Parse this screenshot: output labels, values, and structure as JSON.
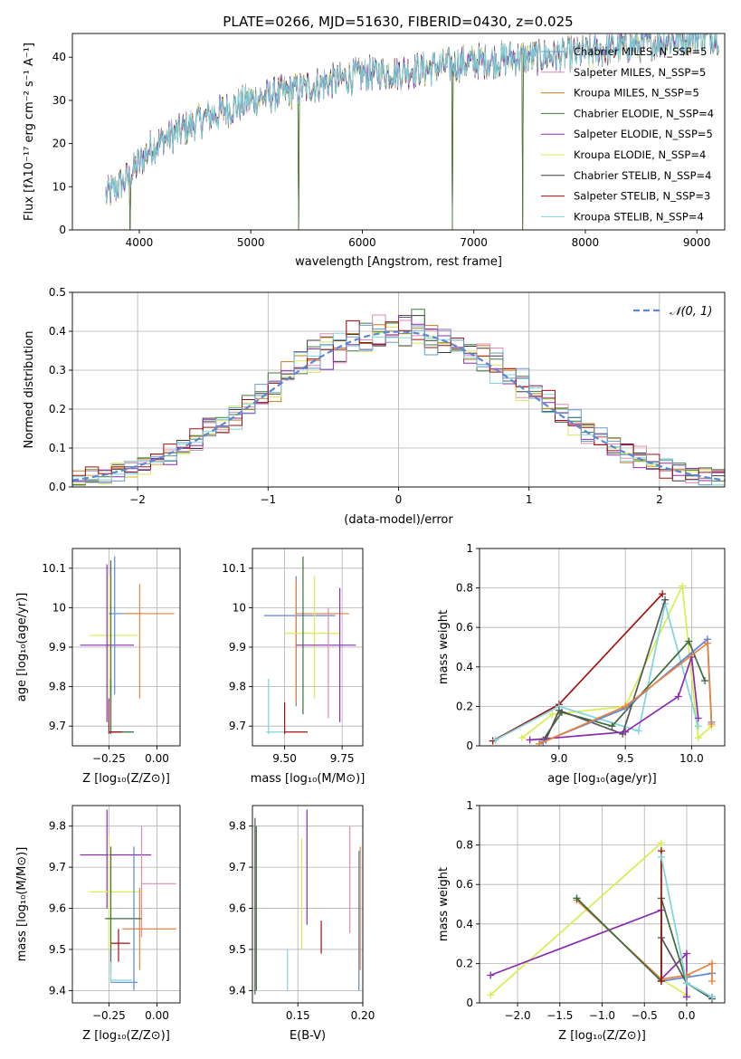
{
  "colors": {
    "chabrier_miles": "#6b9bc4",
    "salpeter_miles": "#e08ab4",
    "kroupa_miles": "#c07d1c",
    "chabrier_elodie": "#3d7a3d",
    "salpeter_elodie": "#8a2cb0",
    "kroupa_elodie": "#d7e85a",
    "chabrier_stelib": "#3a3a3a",
    "salpeter_stelib": "#a01010",
    "kroupa_stelib": "#7fd5dc",
    "normal": "#5b87d6",
    "orange": "#e8823a",
    "purple": "#8a2cb0",
    "dkgreen": "#3d6b3d",
    "grey": "#555555",
    "yellow": "#d7ee4e",
    "teal": "#7fd5dc",
    "red": "#a01010"
  },
  "chart_data": [
    {
      "id": "spectrum",
      "type": "line",
      "title": "PLATE=0266, MJD=51630, FIBERID=0430, z=0.025",
      "xlabel": "wavelength [Angstrom, rest frame]",
      "ylabel": "Flux [fλ10⁻¹⁷ erg cm⁻² s⁻¹ A⁻¹]",
      "xlim": [
        3400,
        9250
      ],
      "ylim": [
        0,
        45.5
      ],
      "xticks": [
        4000,
        5000,
        6000,
        7000,
        8000,
        9000
      ],
      "yticks": [
        0,
        10,
        20,
        30,
        40
      ],
      "grid": false,
      "legend_position": "top-right",
      "series": [
        {
          "name": "Chabrier MILES, N_SSP=5"
        },
        {
          "name": "Salpeter MILES, N_SSP=5"
        },
        {
          "name": "Kroupa MILES, N_SSP=5"
        },
        {
          "name": "Chabrier ELODIE, N_SSP=4"
        },
        {
          "name": "Salpeter ELODIE, N_SSP=5"
        },
        {
          "name": "Kroupa ELODIE, N_SSP=4"
        },
        {
          "name": "Chabrier STELIB, N_SSP=4"
        },
        {
          "name": "Salpeter STELIB, N_SSP=3"
        },
        {
          "name": "Kroupa STELIB, N_SSP=4"
        }
      ],
      "trend": {
        "x": [
          3700,
          3900,
          4100,
          4300,
          4600,
          5000,
          5500,
          6000,
          6500,
          7000,
          7500,
          8000,
          8500,
          9000
        ],
        "y": [
          8,
          12,
          19,
          22,
          26,
          30,
          33,
          36,
          37,
          39,
          40,
          41,
          43,
          45
        ]
      },
      "dropouts": [
        3920,
        5430,
        6810,
        7440
      ]
    },
    {
      "id": "residuals",
      "type": "line",
      "xlabel": "(data-model)/error",
      "ylabel": "Normed distribution",
      "xlim": [
        -2.5,
        2.5
      ],
      "ylim": [
        0,
        0.5
      ],
      "xticks": [
        -2,
        -1,
        0,
        1,
        2
      ],
      "xtick_labels": [
        "−2",
        "−1",
        "0",
        "1",
        "2"
      ],
      "yticks": [
        0.0,
        0.1,
        0.2,
        0.3,
        0.4,
        0.5
      ],
      "ytick_labels": [
        "0.0",
        "0.1",
        "0.2",
        "0.3",
        "0.4",
        "0.5"
      ],
      "grid": true,
      "legend": "𝒩(0, 1)",
      "legend_position": "top-right",
      "gaussian": {
        "mu": 0,
        "sigma": 1
      }
    },
    {
      "id": "age_vs_Z",
      "type": "scatter",
      "xlabel": "Z [log₁₀(Z/Z⊙)]",
      "ylabel": "age  [log₁₀(age/yr)]",
      "xlim": [
        -0.44,
        0.12
      ],
      "ylim": [
        9.65,
        10.15
      ],
      "xticks": [
        -0.25,
        0.0
      ],
      "xtick_labels": [
        "−0.25",
        "0.00"
      ],
      "yticks": [
        9.7,
        9.8,
        9.9,
        10.0,
        10.1
      ],
      "grid": true,
      "points": [
        {
          "x": -0.25,
          "y": 9.93,
          "xl": -0.35,
          "xr": -0.1,
          "yl": 9.77,
          "yh": 10.08,
          "color": "yellow"
        },
        {
          "x": -0.26,
          "y": 9.905,
          "xl": -0.4,
          "xr": -0.12,
          "yl": 9.71,
          "yh": 10.11,
          "color": "purple"
        },
        {
          "x": -0.22,
          "y": 9.985,
          "xl": -0.25,
          "xr": -0.08,
          "yl": 9.78,
          "yh": 10.13,
          "color": "normal"
        },
        {
          "x": -0.09,
          "y": 9.985,
          "xl": -0.18,
          "xr": 0.09,
          "yl": 9.77,
          "yh": 10.06,
          "color": "orange"
        },
        {
          "x": -0.24,
          "y": 9.685,
          "xl": -0.24,
          "xr": -0.13,
          "yl": 9.68,
          "yh": 9.82,
          "color": "teal"
        },
        {
          "x": -0.24,
          "y": 9.685,
          "xl": -0.24,
          "xr": -0.12,
          "yl": 9.68,
          "yh": 9.82,
          "color": "dkgreen"
        },
        {
          "x": -0.25,
          "y": 9.685,
          "xl": -0.25,
          "xr": -0.18,
          "yl": 9.68,
          "yh": 9.77,
          "color": "red"
        },
        {
          "x": -0.24,
          "y": 9.98,
          "xl": -0.24,
          "xr": -0.24,
          "yl": 9.76,
          "yh": 10.12,
          "color": "dkgreen"
        }
      ]
    },
    {
      "id": "age_vs_mass",
      "type": "scatter",
      "xlabel": "mass [log₁₀(M/M⊙)]",
      "xlim": [
        9.36,
        9.84
      ],
      "ylim": [
        9.65,
        10.15
      ],
      "xticks": [
        9.5,
        9.75
      ],
      "xtick_labels": [
        "9.50",
        "9.75"
      ],
      "yticks": [
        9.7,
        9.8,
        9.9,
        10.0,
        10.1
      ],
      "grid": true,
      "points": [
        {
          "x": 9.55,
          "y": 9.98,
          "xl": 9.41,
          "xr": 9.72,
          "yl": 9.75,
          "yh": 10.08,
          "color": "normal"
        },
        {
          "x": 9.55,
          "y": 9.985,
          "xl": 9.55,
          "xr": 9.78,
          "yl": 9.76,
          "yh": 10.07,
          "color": "orange"
        },
        {
          "x": 9.63,
          "y": 9.935,
          "xl": 9.5,
          "xr": 9.74,
          "yl": 9.77,
          "yh": 10.08,
          "color": "yellow"
        },
        {
          "x": 9.74,
          "y": 9.905,
          "xl": 9.55,
          "xr": 9.81,
          "yl": 9.71,
          "yh": 10.05,
          "color": "purple"
        },
        {
          "x": 9.43,
          "y": 9.685,
          "xl": 9.42,
          "xr": 9.5,
          "yl": 9.68,
          "yh": 9.82,
          "color": "teal"
        },
        {
          "x": 9.5,
          "y": 9.685,
          "xl": 9.5,
          "xr": 9.6,
          "yl": 9.68,
          "yh": 9.76,
          "color": "red"
        },
        {
          "x": 9.58,
          "y": 9.935,
          "xl": 9.58,
          "xr": 9.58,
          "yl": 9.73,
          "yh": 10.13,
          "color": "dkgreen"
        },
        {
          "x": 9.69,
          "y": 9.92,
          "xl": 9.69,
          "xr": 9.69,
          "yl": 9.72,
          "yh": 10.0,
          "color": "salpeter_miles"
        }
      ]
    },
    {
      "id": "weight_vs_age",
      "type": "line",
      "xlabel": "age  [log₁₀(age/yr)]",
      "ylabel": "mass weight",
      "xlim": [
        8.4,
        10.25
      ],
      "ylim": [
        0.0,
        1.0
      ],
      "xticks": [
        9.0,
        9.5,
        10.0
      ],
      "xtick_labels": [
        "9.0",
        "9.5",
        "10.0"
      ],
      "yticks": [
        0.0,
        0.2,
        0.4,
        0.6,
        0.8,
        1.0
      ],
      "grid": true,
      "series": [
        {
          "color": "red",
          "x": [
            8.5,
            9.0,
            9.78
          ],
          "y": [
            0.025,
            0.21,
            0.77
          ]
        },
        {
          "color": "yellow",
          "x": [
            8.72,
            8.95,
            9.5,
            9.93,
            10.05,
            10.15
          ],
          "y": [
            0.04,
            0.16,
            0.2,
            0.81,
            0.04,
            0.1
          ]
        },
        {
          "color": "teal",
          "x": [
            8.52,
            9.0,
            9.6,
            9.8,
            10.05
          ],
          "y": [
            0.03,
            0.2,
            0.075,
            0.72,
            0.1
          ]
        },
        {
          "color": "dkgreen",
          "x": [
            8.88,
            9.02,
            9.4,
            9.98,
            10.1
          ],
          "y": [
            0.03,
            0.17,
            0.1,
            0.53,
            0.33
          ]
        },
        {
          "color": "grey",
          "x": [
            8.9,
            9.0,
            9.48,
            9.8
          ],
          "y": [
            0.03,
            0.18,
            0.06,
            0.74
          ]
        },
        {
          "color": "purple",
          "x": [
            8.78,
            9.5,
            9.9,
            10.0,
            10.05
          ],
          "y": [
            0.03,
            0.07,
            0.25,
            0.45,
            0.14
          ]
        },
        {
          "color": "normal",
          "x": [
            8.88,
            9.5,
            10.12,
            10.15
          ],
          "y": [
            0.02,
            0.19,
            0.54,
            0.12
          ]
        },
        {
          "color": "orange",
          "x": [
            8.85,
            9.5,
            10.12,
            10.15
          ],
          "y": [
            0.01,
            0.2,
            0.52,
            0.11
          ]
        }
      ]
    },
    {
      "id": "mass_vs_Z",
      "type": "scatter",
      "xlabel": "Z [log₁₀(Z/Z⊙)]",
      "ylabel": "mass [log₁₀(M/M⊙)]",
      "xlim": [
        -0.44,
        0.12
      ],
      "ylim": [
        9.37,
        9.85
      ],
      "xticks": [
        -0.25,
        0.0
      ],
      "xtick_labels": [
        "−0.25",
        "0.00"
      ],
      "yticks": [
        9.4,
        9.5,
        9.6,
        9.7,
        9.8
      ],
      "grid": true,
      "points": [
        {
          "x": -0.26,
          "y": 9.73,
          "xl": -0.4,
          "xr": -0.03,
          "yl": 9.6,
          "yh": 9.84,
          "color": "purple"
        },
        {
          "x": -0.25,
          "y": 9.64,
          "xl": -0.35,
          "xr": -0.09,
          "yl": 9.5,
          "yh": 9.78,
          "color": "yellow"
        },
        {
          "x": -0.08,
          "y": 9.66,
          "xl": -0.08,
          "xr": 0.1,
          "yl": 9.53,
          "yh": 9.8,
          "color": "salpeter_miles"
        },
        {
          "x": -0.09,
          "y": 9.55,
          "xl": -0.18,
          "xr": 0.1,
          "yl": 9.45,
          "yh": 9.65,
          "color": "orange"
        },
        {
          "x": -0.24,
          "y": 9.575,
          "xl": -0.27,
          "xr": -0.08,
          "yl": 9.44,
          "yh": 9.75,
          "color": "dkgreen"
        },
        {
          "x": -0.2,
          "y": 9.515,
          "xl": -0.24,
          "xr": -0.14,
          "yl": 9.47,
          "yh": 9.55,
          "color": "red"
        },
        {
          "x": -0.24,
          "y": 9.425,
          "xl": -0.24,
          "xr": -0.13,
          "yl": 9.42,
          "yh": 9.47,
          "color": "teal"
        },
        {
          "x": -0.12,
          "y": 9.42,
          "xl": -0.24,
          "xr": -0.1,
          "yl": 9.4,
          "yh": 9.75,
          "color": "normal"
        }
      ]
    },
    {
      "id": "mass_vs_ebv",
      "type": "scatter",
      "xlabel": "E(B-V)",
      "xlim": [
        0.115,
        0.2
      ],
      "ylim": [
        9.37,
        9.85
      ],
      "xticks": [
        0.15,
        0.2
      ],
      "xtick_labels": [
        "0.15",
        "0.20"
      ],
      "yticks": [
        9.4,
        9.5,
        9.6,
        9.7,
        9.8
      ],
      "grid": true,
      "points": [
        {
          "x": 0.117,
          "y": 9.6,
          "xl": 0.117,
          "xr": 0.117,
          "yl": 9.39,
          "yh": 9.82,
          "color": "grey"
        },
        {
          "x": 0.118,
          "y": 9.6,
          "xl": 0.118,
          "xr": 0.118,
          "yl": 9.4,
          "yh": 9.8,
          "color": "dkgreen"
        },
        {
          "x": 0.142,
          "y": 9.45,
          "xl": 0.142,
          "xr": 0.142,
          "yl": 9.4,
          "yh": 9.5,
          "color": "teal"
        },
        {
          "x": 0.153,
          "y": 9.6,
          "xl": 0.153,
          "xr": 0.153,
          "yl": 9.5,
          "yh": 9.77,
          "color": "yellow"
        },
        {
          "x": 0.157,
          "y": 9.7,
          "xl": 0.157,
          "xr": 0.157,
          "yl": 9.56,
          "yh": 9.84,
          "color": "purple"
        },
        {
          "x": 0.168,
          "y": 9.53,
          "xl": 0.168,
          "xr": 0.168,
          "yl": 9.49,
          "yh": 9.57,
          "color": "red"
        },
        {
          "x": 0.19,
          "y": 9.66,
          "xl": 0.19,
          "xr": 0.19,
          "yl": 9.54,
          "yh": 9.8,
          "color": "salpeter_miles"
        },
        {
          "x": 0.197,
          "y": 9.55,
          "xl": 0.197,
          "xr": 0.197,
          "yl": 9.4,
          "yh": 9.74,
          "color": "normal"
        },
        {
          "x": 0.198,
          "y": 9.6,
          "xl": 0.198,
          "xr": 0.198,
          "yl": 9.45,
          "yh": 9.75,
          "color": "orange"
        }
      ]
    },
    {
      "id": "weight_vs_Z",
      "type": "line",
      "xlabel": "Z [log₁₀(Z/Z⊙)]",
      "ylabel": "mass weight",
      "xlim": [
        -2.45,
        0.45
      ],
      "ylim": [
        0.0,
        1.0
      ],
      "xticks": [
        -2.0,
        -1.5,
        -1.0,
        -0.5,
        0.0
      ],
      "xtick_labels": [
        "−2.0",
        "−1.5",
        "−1.0",
        "−0.5",
        "0.0"
      ],
      "yticks": [
        0.0,
        0.2,
        0.4,
        0.6,
        0.8,
        1.0
      ],
      "grid": true,
      "series": [
        {
          "color": "yellow",
          "x": [
            -2.32,
            -0.3,
            -0.3,
            0.0
          ],
          "y": [
            0.04,
            0.81,
            0.12,
            0.04
          ]
        },
        {
          "color": "purple",
          "x": [
            -2.32,
            -0.3,
            -0.3,
            0.0,
            0.0
          ],
          "y": [
            0.14,
            0.47,
            0.12,
            0.25,
            0.03
          ]
        },
        {
          "color": "normal",
          "x": [
            -1.3,
            -0.3,
            0.0,
            0.3
          ],
          "y": [
            0.53,
            0.11,
            0.13,
            0.15
          ]
        },
        {
          "color": "orange",
          "x": [
            -1.3,
            -0.3,
            0.0,
            0.3,
            0.3
          ],
          "y": [
            0.52,
            0.12,
            0.14,
            0.2,
            0.11
          ]
        },
        {
          "color": "dkgreen",
          "x": [
            -1.3,
            -0.3,
            -0.3,
            0.0,
            0.3
          ],
          "y": [
            0.53,
            0.11,
            0.53,
            0.1,
            0.03
          ]
        },
        {
          "color": "grey",
          "x": [
            -0.3,
            0.0,
            0.3
          ],
          "y": [
            0.33,
            0.1,
            0.02
          ]
        },
        {
          "color": "red",
          "x": [
            -0.3,
            -0.3
          ],
          "y": [
            0.77,
            0.11
          ]
        },
        {
          "color": "teal",
          "x": [
            -0.3,
            0.0,
            0.3
          ],
          "y": [
            0.74,
            0.1,
            0.03
          ]
        }
      ]
    }
  ]
}
